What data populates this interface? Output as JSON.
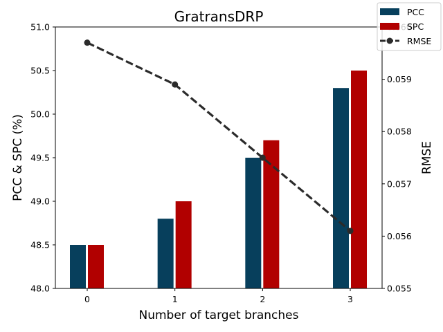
{
  "chart_data": {
    "type": "bar",
    "title": "GratransDRP",
    "xlabel": "Number of target branches",
    "ylabel": "PCC & SPC (%)",
    "y2label": "RMSE",
    "categories": [
      "0",
      "1",
      "2",
      "3"
    ],
    "ylim": [
      48.0,
      51.0
    ],
    "yticks": [
      "48.0",
      "48.5",
      "49.0",
      "49.5",
      "50.0",
      "50.5",
      "51.0"
    ],
    "y2lim": [
      0.055,
      0.06
    ],
    "y2ticks": [
      "0.055",
      "0.056",
      "0.057",
      "0.058",
      "0.059",
      "0.060"
    ],
    "series": [
      {
        "name": "PCC",
        "kind": "bar",
        "axis": "left",
        "color": "#073f5c",
        "values": [
          48.5,
          48.8,
          49.5,
          50.3
        ]
      },
      {
        "name": "SPC",
        "kind": "bar",
        "axis": "left",
        "color": "#b10000",
        "values": [
          48.5,
          49.0,
          49.7,
          50.5
        ]
      },
      {
        "name": "RMSE",
        "kind": "line",
        "axis": "right",
        "color": "#2b2b2b",
        "style": "dashed",
        "marker": "circle",
        "values": [
          0.0597,
          0.0589,
          0.0575,
          0.0561
        ]
      }
    ],
    "grid": false,
    "legend_position": "top-right"
  }
}
